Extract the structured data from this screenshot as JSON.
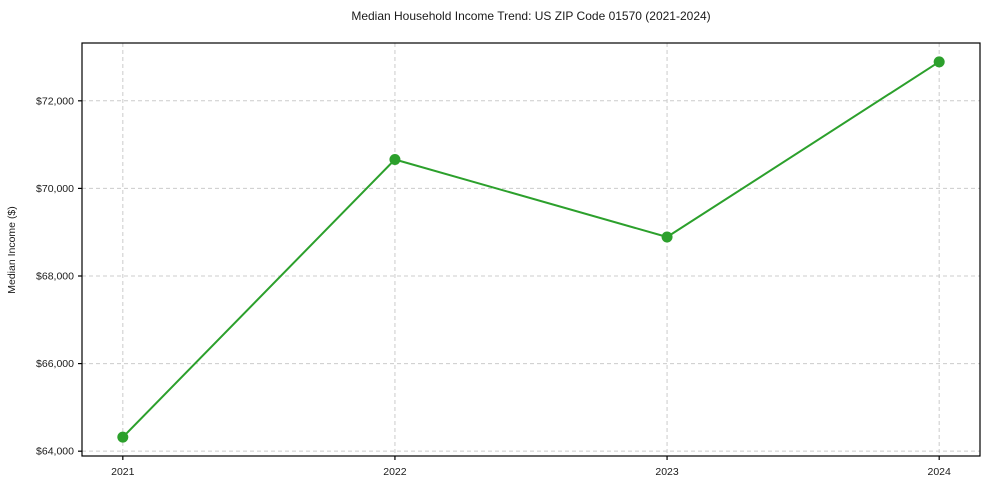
{
  "chart_data": {
    "type": "line",
    "title": "Median Household Income Trend: US ZIP Code 01570 (2021-2024)",
    "xlabel": "",
    "ylabel": "Median Income ($)",
    "x": [
      2021,
      2022,
      2023,
      2024
    ],
    "series": [
      {
        "name": "Median Household Income",
        "values": [
          64320,
          70660,
          68890,
          72890
        ]
      }
    ],
    "xticks": [
      2021,
      2022,
      2023,
      2024
    ],
    "xtick_labels": [
      "2021",
      "2022",
      "2023",
      "2024"
    ],
    "yticks": [
      64000,
      66000,
      68000,
      70000,
      72000
    ],
    "ytick_labels": [
      "$64,000",
      "$66,000",
      "$68,000",
      "$70,000",
      "$72,000"
    ],
    "xlim": [
      2020.85,
      2024.15
    ],
    "ylim": [
      63890,
      73320
    ],
    "grid": true,
    "legend": "none",
    "line_color": "#2ca02c",
    "marker": "circle",
    "marker_color": "#2ca02c",
    "grid_color": "#cccccc",
    "spine_color": "#000000",
    "background_color": "#ffffff"
  }
}
